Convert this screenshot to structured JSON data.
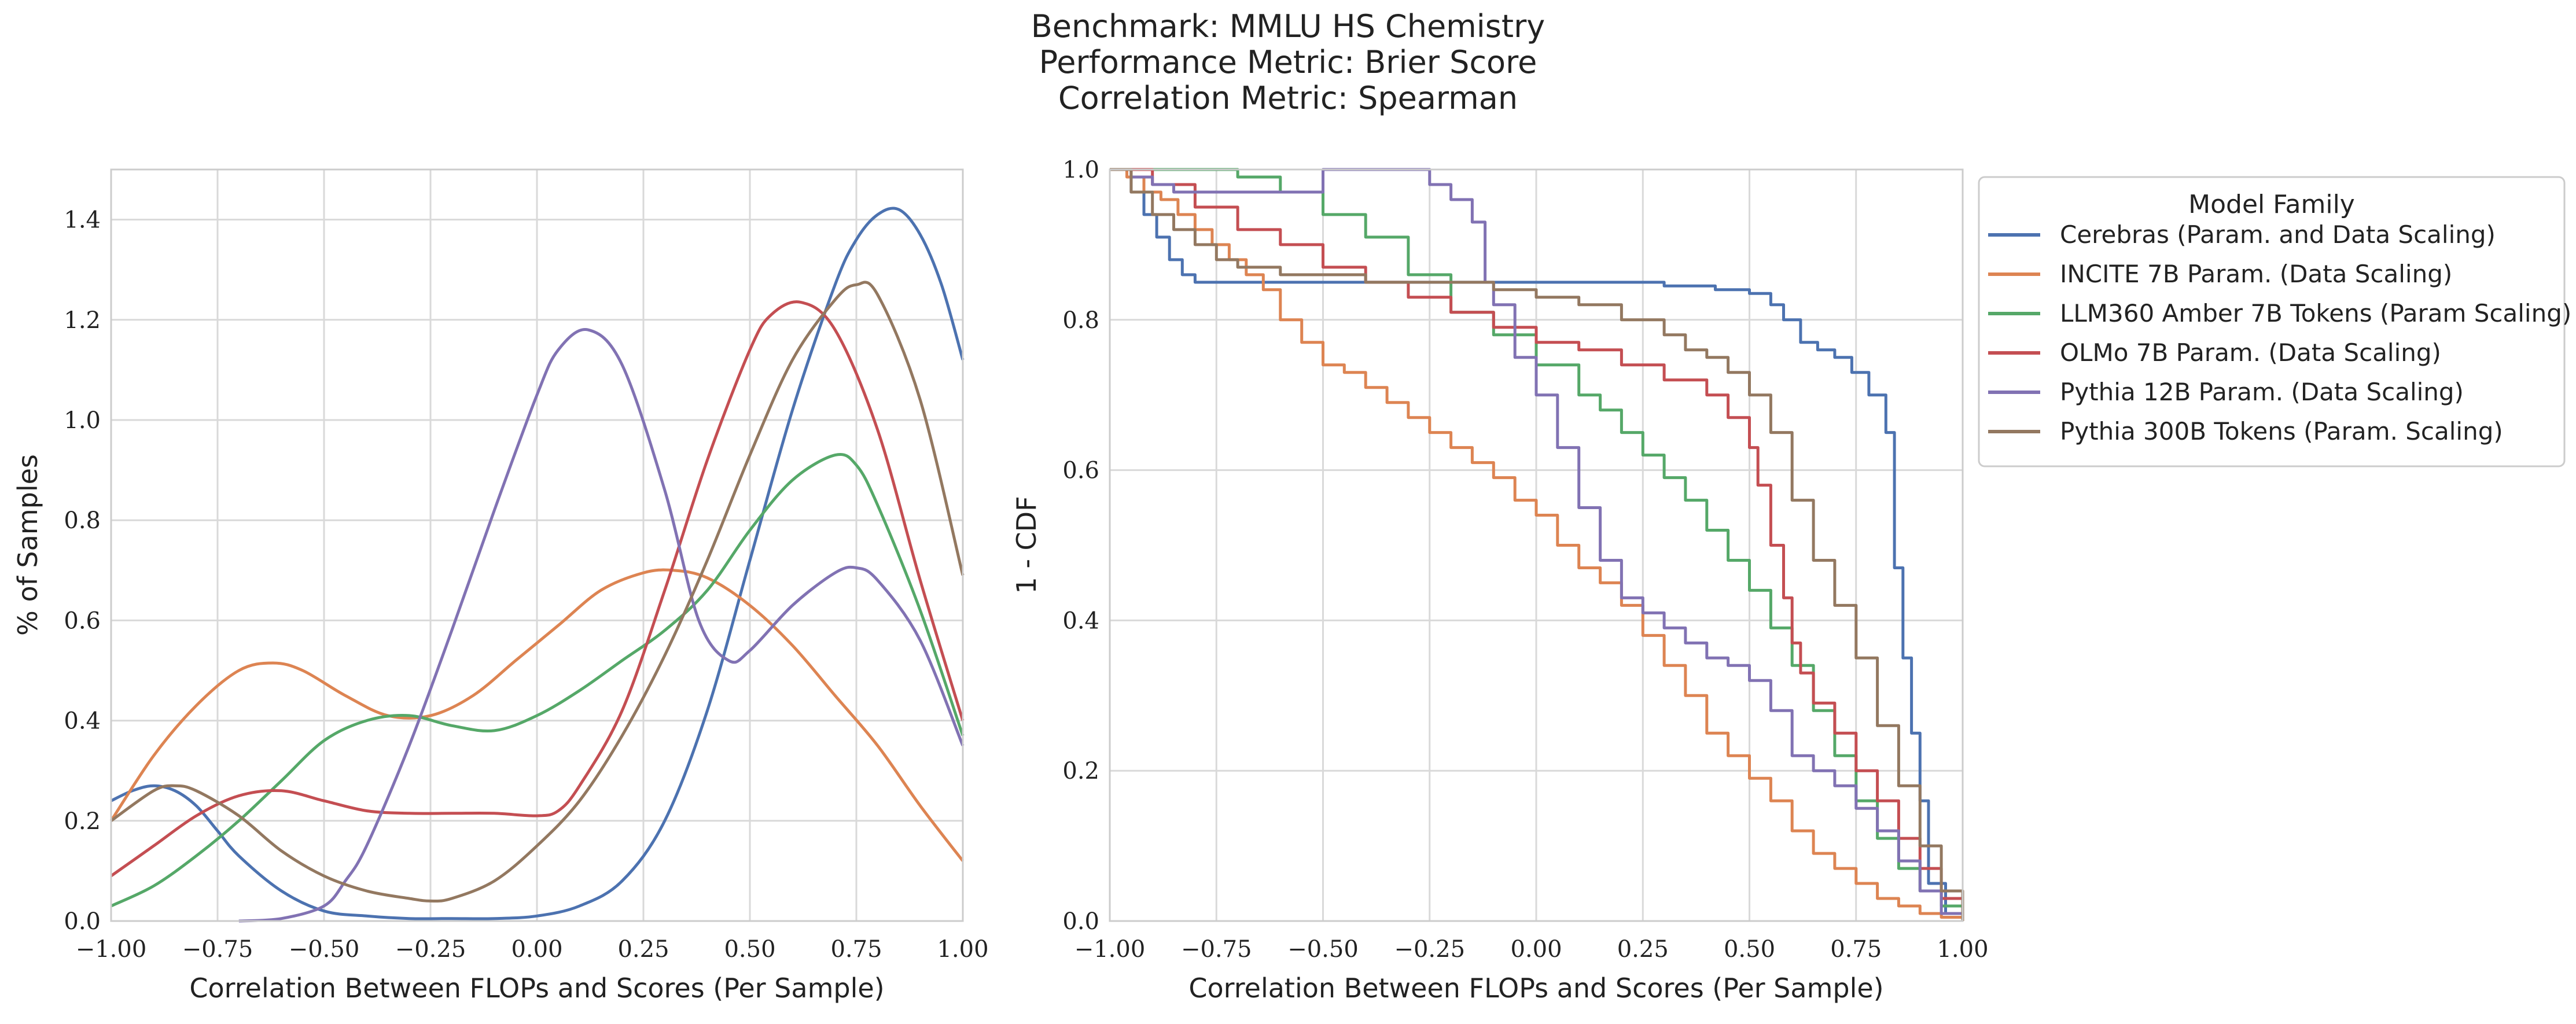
{
  "suptitle": [
    "Benchmark: MMLU HS Chemistry",
    "Performance Metric: Brier Score",
    "Correlation Metric: Spearman"
  ],
  "colors": {
    "Cerebras": "#4c72b0",
    "INCITE": "#dd8452",
    "LLM360": "#55a868",
    "OLMo": "#c44e52",
    "Pythia12B": "#8172b3",
    "Pythia300B": "#937860",
    "grid": "#d9d9d9",
    "axes": "#cccccc"
  },
  "chart_data": [
    {
      "type": "line",
      "xlabel": "Correlation Between FLOPs and Scores (Per Sample)",
      "ylabel": "% of Samples",
      "xlim": [
        -1.0,
        1.0
      ],
      "ylim": [
        0.0,
        1.5
      ],
      "xticks": [
        -1.0,
        -0.75,
        -0.5,
        -0.25,
        0.0,
        0.25,
        0.5,
        0.75,
        1.0
      ],
      "xtick_labels": [
        "−1.00",
        "−0.75",
        "−0.50",
        "−0.25",
        "0.00",
        "0.25",
        "0.50",
        "0.75",
        "1.00"
      ],
      "yticks": [
        0.0,
        0.2,
        0.4,
        0.6,
        0.8,
        1.0,
        1.2,
        1.4
      ],
      "ytick_labels": [
        "0.0",
        "0.2",
        "0.4",
        "0.6",
        "0.8",
        "1.0",
        "1.2",
        "1.4"
      ],
      "grid": true,
      "series": [
        {
          "name": "Cerebras (Param. and Data Scaling)",
          "color_key": "Cerebras",
          "x": [
            -1.0,
            -0.95,
            -0.9,
            -0.85,
            -0.8,
            -0.75,
            -0.7,
            -0.6,
            -0.5,
            -0.4,
            -0.3,
            -0.2,
            -0.1,
            0.0,
            0.1,
            0.2,
            0.3,
            0.4,
            0.5,
            0.6,
            0.7,
            0.75,
            0.8,
            0.85,
            0.9,
            0.95,
            1.0
          ],
          "y": [
            0.24,
            0.26,
            0.27,
            0.26,
            0.23,
            0.18,
            0.13,
            0.06,
            0.02,
            0.01,
            0.005,
            0.005,
            0.005,
            0.01,
            0.03,
            0.08,
            0.2,
            0.42,
            0.72,
            1.02,
            1.27,
            1.36,
            1.41,
            1.42,
            1.37,
            1.27,
            1.12
          ]
        },
        {
          "name": "INCITE 7B Param. (Data Scaling)",
          "color_key": "INCITE",
          "x": [
            -1.0,
            -0.9,
            -0.8,
            -0.7,
            -0.62,
            -0.55,
            -0.45,
            -0.35,
            -0.25,
            -0.15,
            -0.05,
            0.05,
            0.15,
            0.25,
            0.32,
            0.4,
            0.5,
            0.6,
            0.7,
            0.8,
            0.9,
            1.0
          ],
          "y": [
            0.2,
            0.33,
            0.43,
            0.5,
            0.515,
            0.5,
            0.45,
            0.41,
            0.41,
            0.45,
            0.52,
            0.59,
            0.66,
            0.695,
            0.7,
            0.685,
            0.63,
            0.55,
            0.45,
            0.35,
            0.23,
            0.12
          ]
        },
        {
          "name": "LLM360 Amber 7B Tokens (Param Scaling)",
          "color_key": "LLM360",
          "x": [
            -1.0,
            -0.9,
            -0.8,
            -0.7,
            -0.6,
            -0.5,
            -0.4,
            -0.3,
            -0.2,
            -0.1,
            0.0,
            0.1,
            0.2,
            0.3,
            0.4,
            0.5,
            0.6,
            0.7,
            0.75,
            0.8,
            0.9,
            1.0
          ],
          "y": [
            0.03,
            0.07,
            0.13,
            0.2,
            0.28,
            0.36,
            0.4,
            0.41,
            0.39,
            0.38,
            0.41,
            0.46,
            0.52,
            0.58,
            0.66,
            0.78,
            0.88,
            0.93,
            0.91,
            0.83,
            0.62,
            0.37
          ]
        },
        {
          "name": "OLMo 7B Param. (Data Scaling)",
          "color_key": "OLMo",
          "x": [
            -1.0,
            -0.9,
            -0.8,
            -0.7,
            -0.6,
            -0.5,
            -0.4,
            -0.3,
            -0.2,
            -0.1,
            0.0,
            0.05,
            0.1,
            0.2,
            0.3,
            0.4,
            0.5,
            0.55,
            0.62,
            0.7,
            0.8,
            0.9,
            1.0
          ],
          "y": [
            0.09,
            0.15,
            0.21,
            0.25,
            0.26,
            0.24,
            0.22,
            0.215,
            0.215,
            0.215,
            0.21,
            0.22,
            0.27,
            0.42,
            0.66,
            0.92,
            1.14,
            1.21,
            1.235,
            1.18,
            0.98,
            0.68,
            0.4
          ]
        },
        {
          "name": "Pythia 12B Param. (Data Scaling)",
          "color_key": "Pythia12B",
          "x": [
            -0.7,
            -0.6,
            -0.5,
            -0.45,
            -0.4,
            -0.3,
            -0.2,
            -0.1,
            0.0,
            0.05,
            0.12,
            0.2,
            0.3,
            0.38,
            0.45,
            0.5,
            0.6,
            0.7,
            0.75,
            0.8,
            0.9,
            1.0
          ],
          "y": [
            0.0,
            0.005,
            0.03,
            0.08,
            0.15,
            0.35,
            0.58,
            0.82,
            1.05,
            1.14,
            1.18,
            1.11,
            0.86,
            0.6,
            0.52,
            0.54,
            0.63,
            0.695,
            0.705,
            0.68,
            0.56,
            0.35
          ]
        },
        {
          "name": "Pythia 300B Tokens (Param. Scaling)",
          "color_key": "Pythia300B",
          "x": [
            -1.0,
            -0.9,
            -0.85,
            -0.8,
            -0.7,
            -0.6,
            -0.5,
            -0.4,
            -0.3,
            -0.25,
            -0.2,
            -0.1,
            0.0,
            0.1,
            0.2,
            0.3,
            0.4,
            0.5,
            0.6,
            0.7,
            0.75,
            0.8,
            0.9,
            1.0
          ],
          "y": [
            0.2,
            0.26,
            0.27,
            0.26,
            0.21,
            0.14,
            0.09,
            0.06,
            0.045,
            0.04,
            0.045,
            0.08,
            0.15,
            0.24,
            0.37,
            0.53,
            0.72,
            0.93,
            1.12,
            1.24,
            1.27,
            1.25,
            1.04,
            0.69
          ]
        }
      ]
    },
    {
      "type": "line",
      "drawstyle": "steps",
      "xlabel": "Correlation Between FLOPs and Scores (Per Sample)",
      "ylabel": "1 - CDF",
      "xlim": [
        -1.0,
        1.0
      ],
      "ylim": [
        0.0,
        1.0
      ],
      "xticks": [
        -1.0,
        -0.75,
        -0.5,
        -0.25,
        0.0,
        0.25,
        0.5,
        0.75,
        1.0
      ],
      "xtick_labels": [
        "−1.00",
        "−0.75",
        "−0.50",
        "−0.25",
        "0.00",
        "0.25",
        "0.50",
        "0.75",
        "1.00"
      ],
      "yticks": [
        0.0,
        0.2,
        0.4,
        0.6,
        0.8,
        1.0
      ],
      "ytick_labels": [
        "0.0",
        "0.2",
        "0.4",
        "0.6",
        "0.8",
        "1.0"
      ],
      "grid": true,
      "legend": {
        "title": "Model Family",
        "placement": "outside right, top"
      },
      "series": [
        {
          "name": "Cerebras (Param. and Data Scaling)",
          "color_key": "Cerebras",
          "x": [
            -1.0,
            -0.95,
            -0.92,
            -0.89,
            -0.86,
            -0.83,
            -0.8,
            -0.4,
            0.0,
            0.2,
            0.3,
            0.42,
            0.5,
            0.55,
            0.58,
            0.62,
            0.66,
            0.7,
            0.74,
            0.78,
            0.82,
            0.84,
            0.86,
            0.88,
            0.9,
            0.92,
            0.96,
            1.0
          ],
          "y": [
            1.0,
            0.97,
            0.94,
            0.91,
            0.88,
            0.86,
            0.85,
            0.85,
            0.85,
            0.85,
            0.845,
            0.84,
            0.835,
            0.82,
            0.8,
            0.77,
            0.76,
            0.75,
            0.73,
            0.7,
            0.65,
            0.47,
            0.35,
            0.25,
            0.16,
            0.05,
            0.01,
            0.0
          ]
        },
        {
          "name": "INCITE 7B Param. (Data Scaling)",
          "color_key": "INCITE",
          "x": [
            -1.0,
            -0.96,
            -0.92,
            -0.88,
            -0.84,
            -0.8,
            -0.76,
            -0.72,
            -0.68,
            -0.64,
            -0.6,
            -0.55,
            -0.5,
            -0.45,
            -0.4,
            -0.35,
            -0.3,
            -0.25,
            -0.2,
            -0.15,
            -0.1,
            -0.05,
            0.0,
            0.05,
            0.1,
            0.15,
            0.2,
            0.25,
            0.3,
            0.35,
            0.4,
            0.45,
            0.5,
            0.55,
            0.6,
            0.65,
            0.7,
            0.75,
            0.8,
            0.85,
            0.9,
            0.95,
            1.0
          ],
          "y": [
            1.0,
            0.99,
            0.97,
            0.96,
            0.94,
            0.92,
            0.9,
            0.88,
            0.86,
            0.84,
            0.8,
            0.77,
            0.74,
            0.73,
            0.71,
            0.69,
            0.67,
            0.65,
            0.63,
            0.61,
            0.59,
            0.56,
            0.54,
            0.5,
            0.47,
            0.45,
            0.42,
            0.38,
            0.34,
            0.3,
            0.25,
            0.22,
            0.19,
            0.16,
            0.12,
            0.09,
            0.07,
            0.05,
            0.03,
            0.02,
            0.01,
            0.005,
            0.0
          ]
        },
        {
          "name": "LLM360 Amber 7B Tokens (Param Scaling)",
          "color_key": "LLM360",
          "x": [
            -1.0,
            -0.8,
            -0.7,
            -0.6,
            -0.5,
            -0.4,
            -0.3,
            -0.2,
            -0.1,
            0.0,
            0.1,
            0.15,
            0.2,
            0.25,
            0.3,
            0.35,
            0.4,
            0.45,
            0.5,
            0.55,
            0.6,
            0.65,
            0.7,
            0.75,
            0.8,
            0.85,
            0.9,
            0.95,
            1.0
          ],
          "y": [
            1.0,
            1.0,
            0.99,
            0.97,
            0.94,
            0.91,
            0.86,
            0.81,
            0.78,
            0.74,
            0.7,
            0.68,
            0.65,
            0.62,
            0.59,
            0.56,
            0.52,
            0.48,
            0.44,
            0.39,
            0.34,
            0.28,
            0.22,
            0.16,
            0.11,
            0.07,
            0.04,
            0.02,
            0.01
          ]
        },
        {
          "name": "OLMo 7B Param. (Data Scaling)",
          "color_key": "OLMo",
          "x": [
            -1.0,
            -0.9,
            -0.8,
            -0.7,
            -0.6,
            -0.5,
            -0.4,
            -0.3,
            -0.2,
            -0.1,
            0.0,
            0.1,
            0.2,
            0.3,
            0.4,
            0.45,
            0.5,
            0.52,
            0.55,
            0.58,
            0.6,
            0.62,
            0.65,
            0.7,
            0.75,
            0.8,
            0.85,
            0.9,
            0.95,
            1.0
          ],
          "y": [
            1.0,
            0.98,
            0.95,
            0.92,
            0.9,
            0.87,
            0.85,
            0.83,
            0.81,
            0.79,
            0.77,
            0.76,
            0.74,
            0.72,
            0.7,
            0.67,
            0.63,
            0.58,
            0.5,
            0.43,
            0.37,
            0.33,
            0.29,
            0.25,
            0.2,
            0.16,
            0.11,
            0.07,
            0.03,
            0.015
          ]
        },
        {
          "name": "Pythia 12B Param. (Data Scaling)",
          "color_key": "Pythia12B",
          "x": [
            -1.0,
            -0.95,
            -0.9,
            -0.85,
            -0.5,
            -0.3,
            -0.25,
            -0.2,
            -0.15,
            -0.12,
            -0.1,
            -0.05,
            0.0,
            0.05,
            0.1,
            0.15,
            0.2,
            0.25,
            0.3,
            0.35,
            0.4,
            0.45,
            0.5,
            0.55,
            0.6,
            0.65,
            0.7,
            0.75,
            0.8,
            0.85,
            0.9,
            0.95,
            1.0
          ],
          "y": [
            1.0,
            0.99,
            0.98,
            0.97,
            1.0,
            1.0,
            0.98,
            0.96,
            0.93,
            0.85,
            0.82,
            0.75,
            0.7,
            0.63,
            0.55,
            0.48,
            0.43,
            0.41,
            0.39,
            0.37,
            0.35,
            0.34,
            0.32,
            0.28,
            0.22,
            0.2,
            0.18,
            0.15,
            0.12,
            0.08,
            0.04,
            0.01,
            0.0
          ]
        },
        {
          "name": "Pythia 300B Tokens (Param. Scaling)",
          "color_key": "Pythia300B",
          "x": [
            -1.0,
            -0.95,
            -0.9,
            -0.85,
            -0.8,
            -0.75,
            -0.7,
            -0.6,
            -0.5,
            -0.4,
            -0.3,
            -0.2,
            -0.1,
            0.0,
            0.1,
            0.2,
            0.3,
            0.35,
            0.4,
            0.45,
            0.5,
            0.55,
            0.6,
            0.65,
            0.7,
            0.75,
            0.8,
            0.85,
            0.9,
            0.95,
            1.0
          ],
          "y": [
            1.0,
            0.97,
            0.94,
            0.92,
            0.9,
            0.88,
            0.87,
            0.86,
            0.86,
            0.85,
            0.85,
            0.85,
            0.84,
            0.83,
            0.82,
            0.8,
            0.78,
            0.76,
            0.75,
            0.73,
            0.7,
            0.65,
            0.56,
            0.48,
            0.42,
            0.35,
            0.26,
            0.18,
            0.1,
            0.04,
            0.0
          ]
        }
      ]
    }
  ]
}
